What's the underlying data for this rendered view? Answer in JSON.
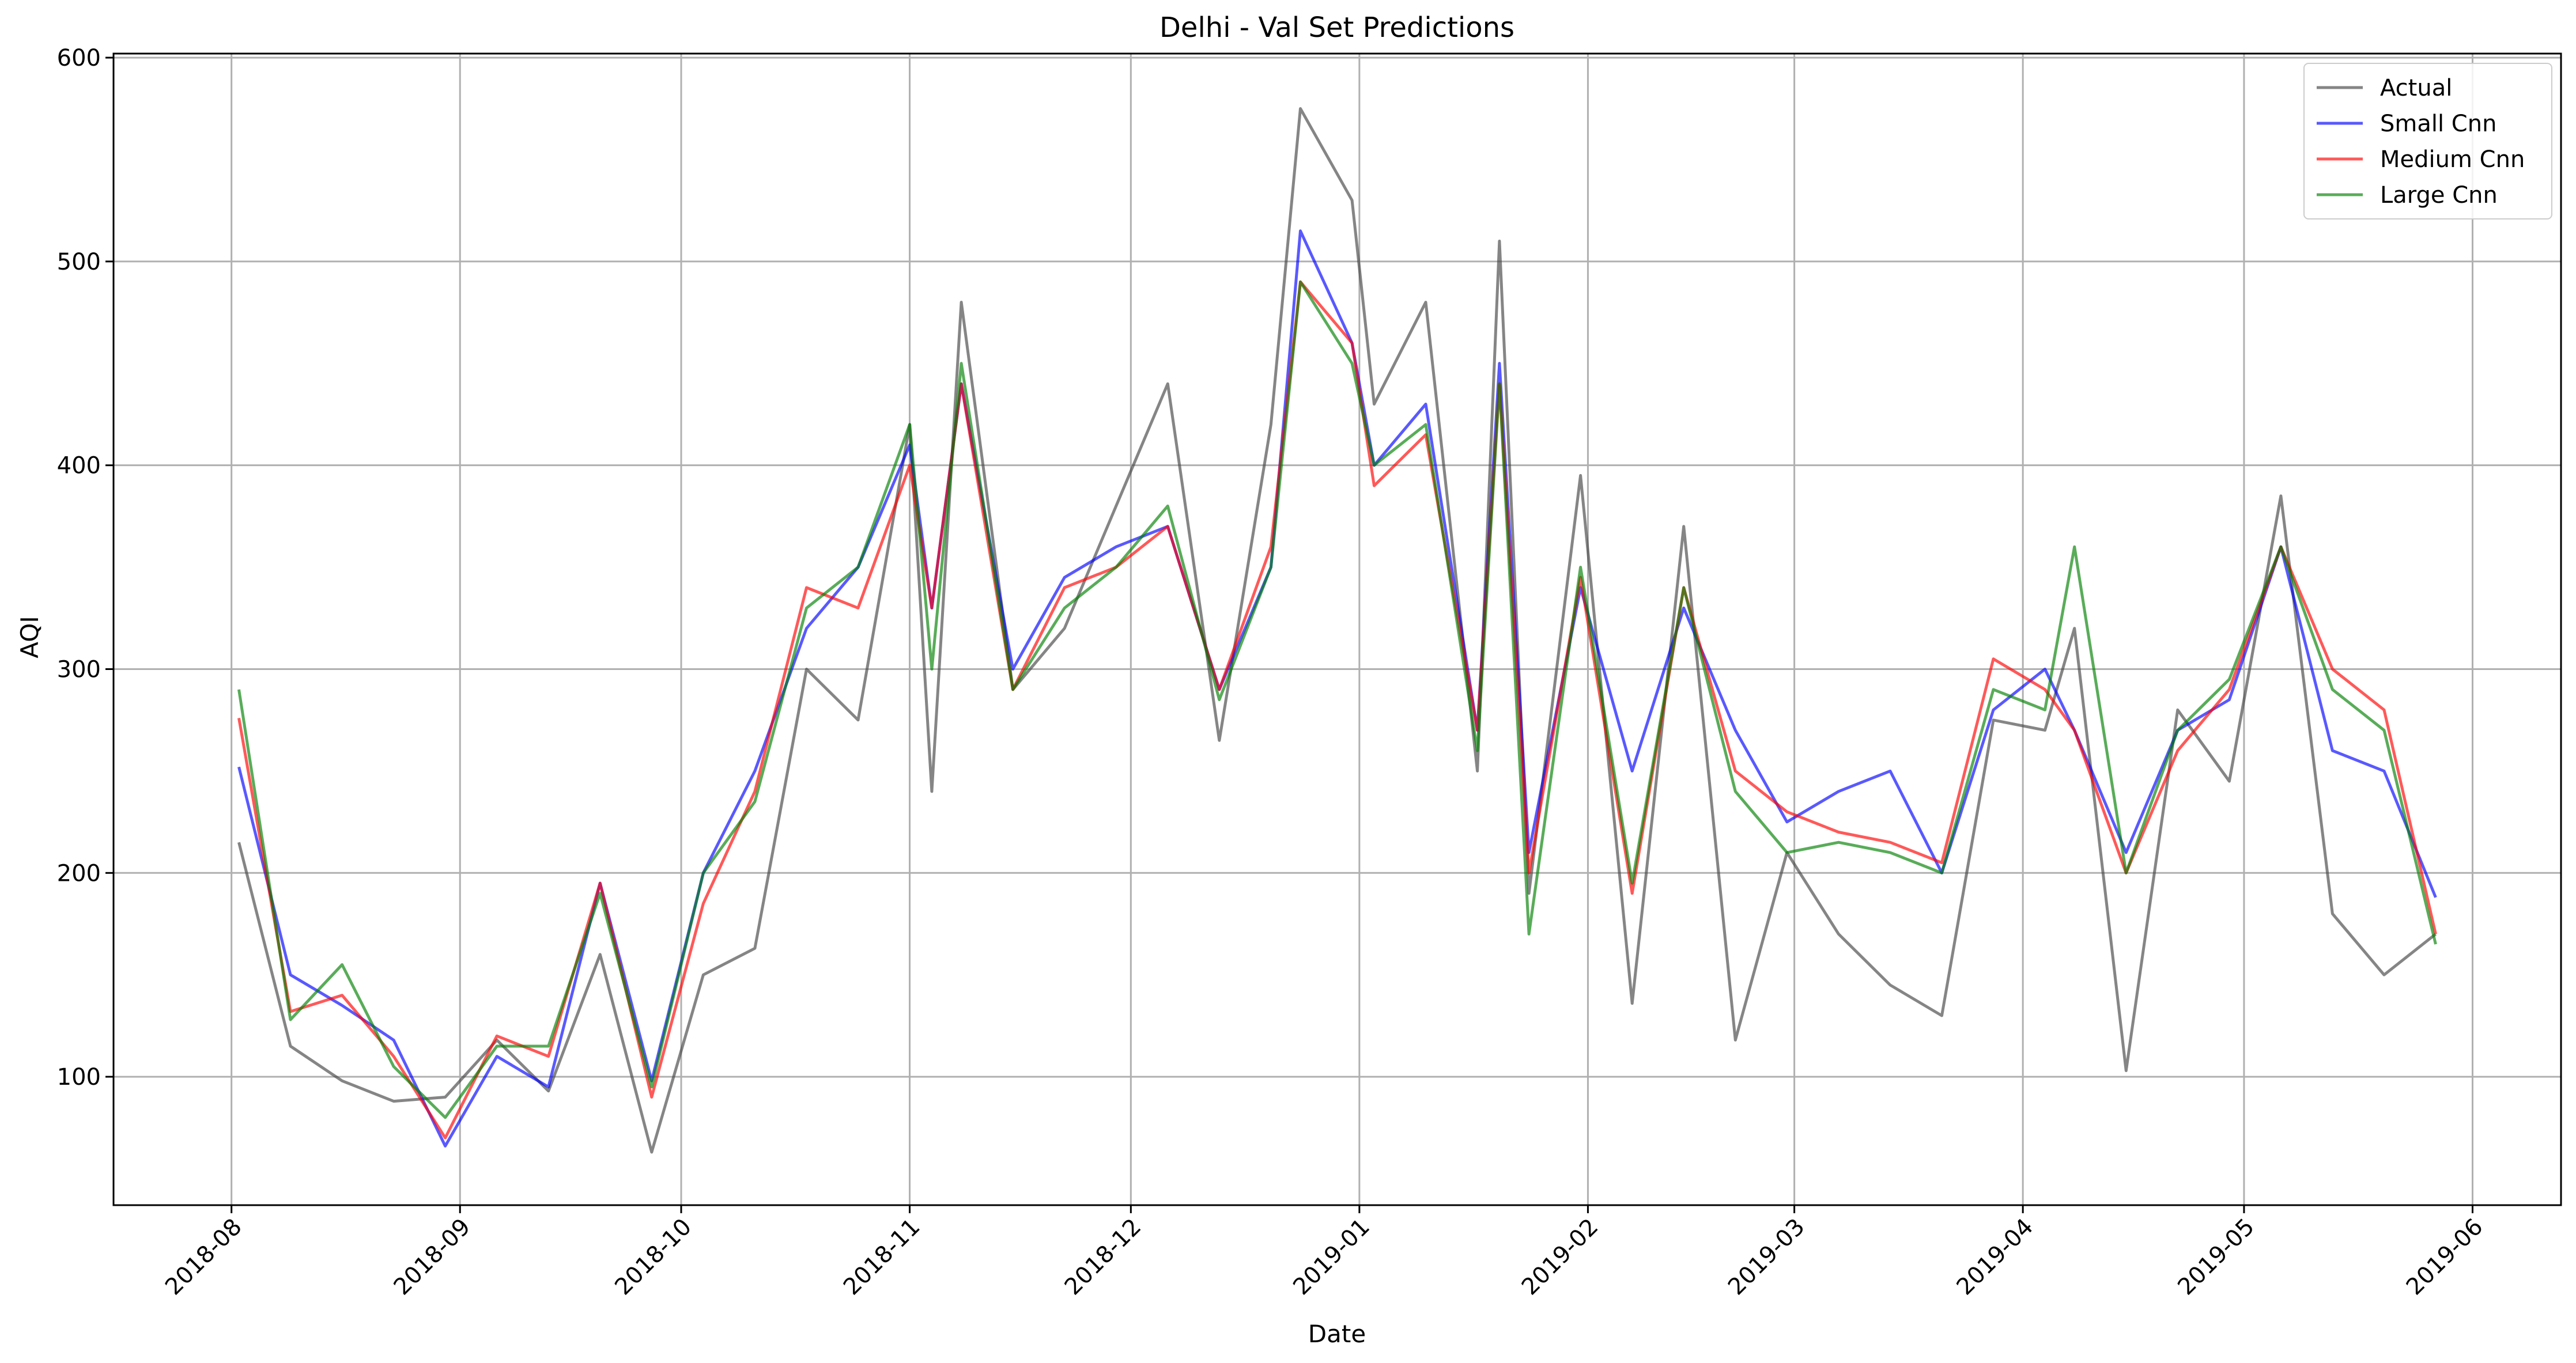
{
  "chart_data": {
    "type": "line",
    "title": "Delhi - Val Set Predictions",
    "xlabel": "Date",
    "ylabel": "AQI",
    "x_ticks": [
      "2018-08",
      "2018-09",
      "2018-10",
      "2018-11",
      "2018-12",
      "2019-01",
      "2019-02",
      "2019-03",
      "2019-04",
      "2019-05",
      "2019-06"
    ],
    "y_ticks": [
      100,
      200,
      300,
      400,
      500,
      600
    ],
    "xlim": [
      "2018-07-16",
      "2019-06-13"
    ],
    "ylim": [
      37,
      602
    ],
    "grid": true,
    "legend_position": "top-right",
    "x": [
      "2018-08-02",
      "2018-08-09",
      "2018-08-16",
      "2018-08-23",
      "2018-08-30",
      "2018-09-06",
      "2018-09-13",
      "2018-09-20",
      "2018-09-27",
      "2018-10-04",
      "2018-10-11",
      "2018-10-18",
      "2018-10-25",
      "2018-11-01",
      "2018-11-04",
      "2018-11-08",
      "2018-11-15",
      "2018-11-22",
      "2018-11-29",
      "2018-12-06",
      "2018-12-13",
      "2018-12-20",
      "2018-12-24",
      "2018-12-31",
      "2019-01-03",
      "2019-01-10",
      "2019-01-17",
      "2019-01-20",
      "2019-01-24",
      "2019-01-31",
      "2019-02-07",
      "2019-02-14",
      "2019-02-21",
      "2019-02-28",
      "2019-03-07",
      "2019-03-14",
      "2019-03-21",
      "2019-03-28",
      "2019-04-04",
      "2019-04-08",
      "2019-04-15",
      "2019-04-22",
      "2019-04-29",
      "2019-05-06",
      "2019-05-13",
      "2019-05-20",
      "2019-05-27"
    ],
    "series": [
      {
        "name": "Actual",
        "color": "#444444",
        "values": [
          215,
          115,
          98,
          88,
          90,
          118,
          93,
          160,
          63,
          150,
          163,
          300,
          275,
          420,
          240,
          480,
          290,
          320,
          380,
          440,
          265,
          420,
          575,
          530,
          430,
          480,
          250,
          510,
          190,
          395,
          136,
          370,
          118,
          210,
          170,
          145,
          130,
          275,
          270,
          320,
          103,
          280,
          245,
          385,
          180,
          150,
          170
        ]
      },
      {
        "name": "Small Cnn",
        "color": "#0000ff",
        "values": [
          252,
          150,
          135,
          118,
          66,
          110,
          95,
          195,
          98,
          200,
          250,
          320,
          350,
          410,
          330,
          440,
          300,
          345,
          360,
          370,
          290,
          350,
          515,
          460,
          400,
          430,
          270,
          450,
          210,
          340,
          250,
          330,
          270,
          225,
          240,
          250,
          200,
          280,
          300,
          270,
          210,
          270,
          285,
          360,
          260,
          250,
          188
        ]
      },
      {
        "name": "Medium Cnn",
        "color": "#ff0000",
        "values": [
          276,
          132,
          140,
          110,
          70,
          120,
          110,
          195,
          90,
          185,
          240,
          340,
          330,
          400,
          330,
          440,
          290,
          340,
          350,
          370,
          290,
          360,
          490,
          460,
          390,
          415,
          270,
          440,
          200,
          345,
          190,
          340,
          250,
          230,
          220,
          215,
          205,
          305,
          290,
          270,
          200,
          260,
          290,
          360,
          300,
          280,
          170
        ]
      },
      {
        "name": "Large Cnn",
        "color": "#008000",
        "values": [
          290,
          128,
          155,
          105,
          80,
          115,
          115,
          190,
          95,
          200,
          235,
          330,
          350,
          420,
          300,
          450,
          290,
          330,
          350,
          380,
          285,
          350,
          490,
          450,
          400,
          420,
          260,
          440,
          170,
          350,
          195,
          340,
          240,
          210,
          215,
          210,
          200,
          290,
          280,
          360,
          200,
          270,
          295,
          360,
          290,
          270,
          165
        ]
      }
    ]
  }
}
